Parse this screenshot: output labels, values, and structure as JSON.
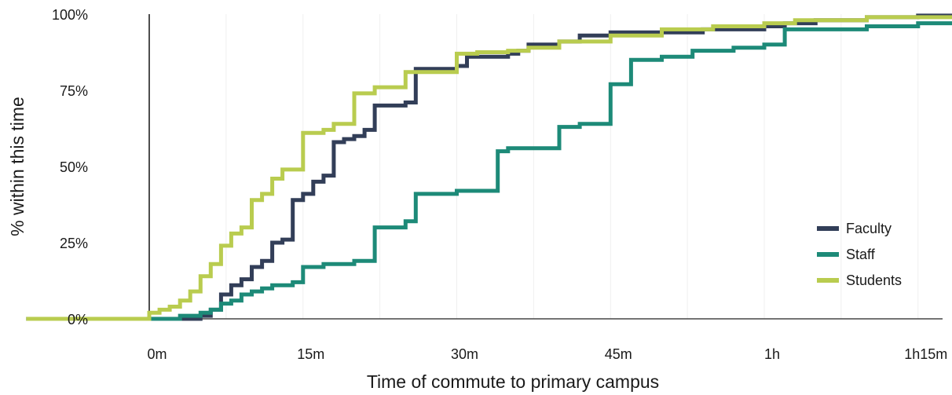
{
  "chart_data": {
    "type": "line",
    "step": true,
    "xlabel": "Time of commute to primary campus",
    "ylabel": "% within this time",
    "x_unit": "minutes",
    "xlim": [
      -12,
      85
    ],
    "ylim": [
      0,
      100
    ],
    "x_ticks": [
      {
        "value": 0,
        "label": "0m"
      },
      {
        "value": 15,
        "label": "15m"
      },
      {
        "value": 30,
        "label": "30m"
      },
      {
        "value": 45,
        "label": "45m"
      },
      {
        "value": 60,
        "label": "1h"
      },
      {
        "value": 75,
        "label": "1h15m"
      }
    ],
    "y_ticks": [
      {
        "value": 0,
        "label": "0%"
      },
      {
        "value": 25,
        "label": "25%"
      },
      {
        "value": 50,
        "label": "50%"
      },
      {
        "value": 75,
        "label": "75%"
      },
      {
        "value": 100,
        "label": "100%"
      }
    ],
    "gridlines": "vertical-light",
    "legend_position": "right",
    "series": [
      {
        "name": "Faculty",
        "color": "#323e58",
        "x": [
          -12,
          3,
          5,
          6,
          7,
          8,
          9,
          10,
          11,
          12,
          13,
          14,
          15,
          16,
          17,
          18,
          19,
          20,
          21,
          22,
          25,
          26,
          30,
          31,
          35,
          36,
          37,
          40,
          42,
          45,
          50,
          54,
          60,
          62,
          65,
          70,
          75,
          80,
          85
        ],
        "y": [
          0,
          0,
          1,
          3,
          8,
          11,
          13,
          17,
          19,
          25,
          26,
          39,
          41,
          45,
          47,
          58,
          59,
          60,
          62,
          70,
          71,
          82,
          83,
          86,
          87,
          88,
          90,
          91,
          93,
          94,
          94,
          95,
          96,
          97,
          98,
          99,
          99.5,
          99.5,
          99.5
        ]
      },
      {
        "name": "Staff",
        "color": "#1d8a78",
        "x": [
          -12,
          1,
          3,
          5,
          6,
          7,
          8,
          9,
          10,
          11,
          12,
          14,
          15,
          17,
          20,
          22,
          25,
          26,
          30,
          34,
          35,
          40,
          42,
          45,
          47,
          50,
          53,
          57,
          60,
          62,
          70,
          75,
          80,
          85
        ],
        "y": [
          0,
          0,
          1,
          2,
          3,
          5,
          6,
          8,
          9,
          10,
          11,
          12,
          17,
          18,
          19,
          30,
          32,
          41,
          42,
          55,
          56,
          63,
          64,
          77,
          85,
          86,
          88,
          89,
          90,
          95,
          96,
          97,
          98,
          98
        ]
      },
      {
        "name": "Students",
        "color": "#b9cc4f",
        "x": [
          -12,
          0,
          1,
          2,
          3,
          4,
          5,
          6,
          7,
          8,
          9,
          10,
          11,
          12,
          13,
          15,
          17,
          18,
          20,
          22,
          25,
          30,
          32,
          35,
          37,
          40,
          45,
          50,
          55,
          60,
          63,
          65,
          70,
          75,
          80,
          85
        ],
        "y": [
          0,
          2,
          3,
          4,
          6,
          9,
          14,
          18,
          24,
          28,
          30,
          39,
          41,
          46,
          49,
          61,
          62,
          64,
          74,
          76,
          81,
          87,
          87.5,
          88,
          89,
          91,
          93,
          95,
          96,
          97,
          98,
          98,
          99,
          99,
          99,
          99
        ]
      }
    ]
  }
}
